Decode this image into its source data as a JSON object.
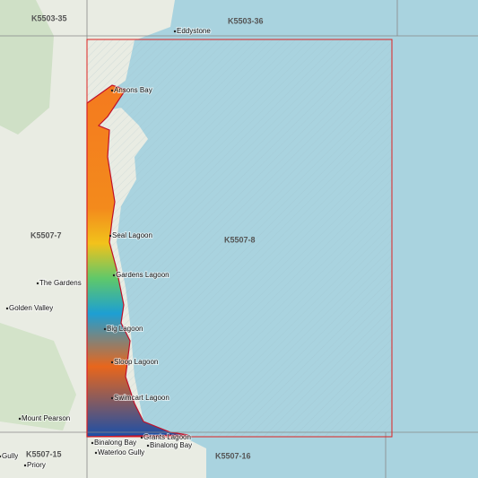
{
  "map": {
    "tiles": [
      "K5503-35",
      "K5503-36",
      "K5507-7",
      "K5507-8",
      "K5507-15",
      "K5507-16"
    ],
    "places": [
      "Eddystone",
      "Ansons Bay",
      "Seal Lagoon",
      "The Gardens",
      "Gardens Lagoon",
      "Golden Valley",
      "Big Lagoon",
      "Sloop Lagoon",
      "Swimcart Lagoon",
      "Mount Pearson",
      "Grants Lagoon",
      "Binalong Bay",
      "Binalong Bay",
      "Waterloo Gully",
      "Gully",
      "Priory"
    ]
  }
}
